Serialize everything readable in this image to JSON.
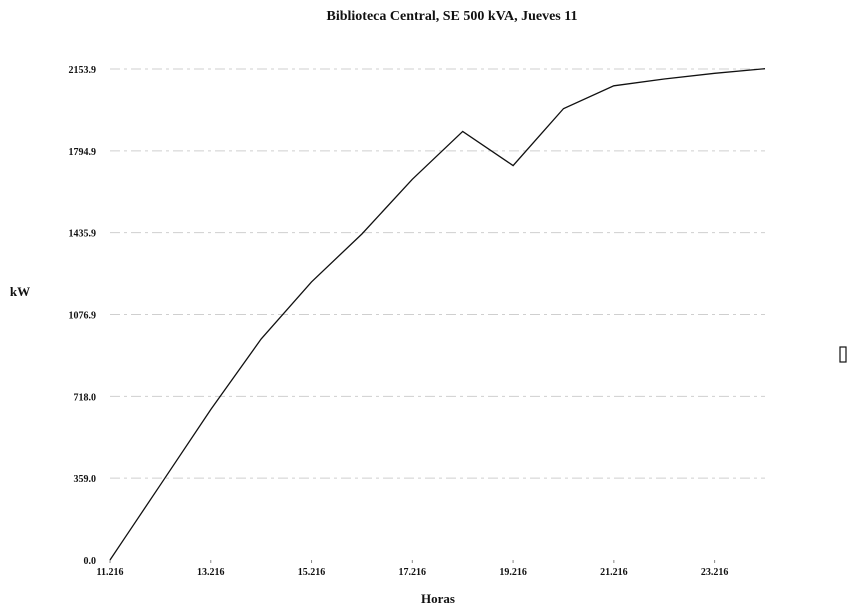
{
  "chart_data": {
    "type": "line",
    "title": "Biblioteca Central, SE 500 kVA, Jueves 11",
    "xlabel": "Horas",
    "ylabel": "kW",
    "xlim": [
      11.216,
      24.216
    ],
    "ylim": [
      0,
      2153.9
    ],
    "x_ticks": [
      "11.216",
      "13.216",
      "15.216",
      "17.216",
      "19.216",
      "21.216",
      "23.216"
    ],
    "x_tick_values": [
      11.216,
      13.216,
      15.216,
      17.216,
      19.216,
      21.216,
      23.216
    ],
    "y_ticks": [
      "0.0",
      "359.0",
      "718.0",
      "1076.9",
      "1435.9",
      "1794.9",
      "2153.9"
    ],
    "y_tick_values": [
      0,
      359.0,
      718.0,
      1076.9,
      1435.9,
      1794.9,
      2153.9
    ],
    "grid": true,
    "legend": "none",
    "series": [
      {
        "x": [
          11.216,
          12.216,
          13.216,
          14.216,
          15.216,
          16.216,
          17.216,
          18.216,
          19.216,
          20.216,
          21.216,
          22.216,
          23.216,
          24.216
        ],
        "y": [
          0,
          330,
          660,
          970,
          1220,
          1430,
          1670,
          1880,
          1730,
          1980,
          2080,
          2110,
          2135,
          2155
        ]
      }
    ]
  }
}
